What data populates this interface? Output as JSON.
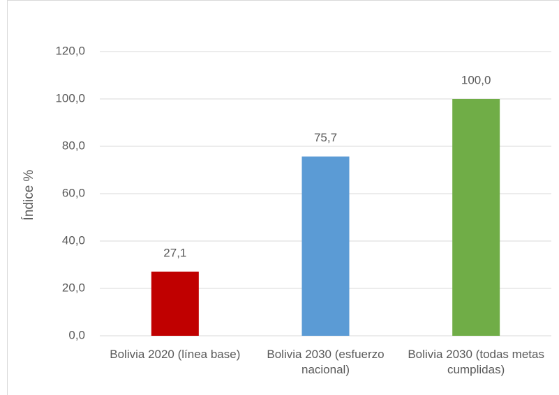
{
  "chart_data": {
    "type": "bar",
    "ylabel": "Índice %",
    "categories": [
      "Bolivia 2020 (línea base)",
      "Bolivia 2030 (esfuerzo nacional)",
      "Bolivia 2030 (todas metas cumplidas)"
    ],
    "values": [
      27.1,
      75.7,
      100.0
    ],
    "value_labels": [
      "27,1",
      "75,7",
      "100,0"
    ],
    "colors": [
      "#c00000",
      "#5b9bd5",
      "#70ad47"
    ],
    "ylim": [
      0,
      120
    ],
    "yticks": [
      {
        "value": 0,
        "label": "0,0"
      },
      {
        "value": 20,
        "label": "20,0"
      },
      {
        "value": 40,
        "label": "40,0"
      },
      {
        "value": 60,
        "label": "60,0"
      },
      {
        "value": 80,
        "label": "80,0"
      },
      {
        "value": 100,
        "label": "100,0"
      },
      {
        "value": 120,
        "label": "120,0"
      }
    ],
    "grid": true
  }
}
